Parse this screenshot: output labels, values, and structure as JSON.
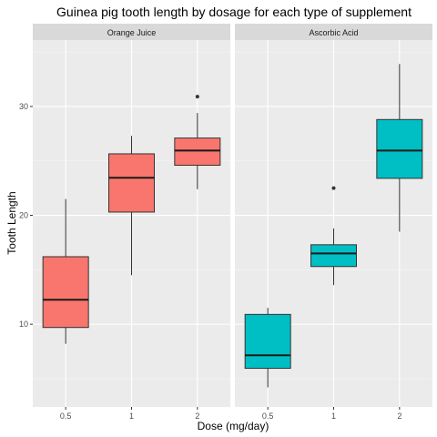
{
  "chart_data": {
    "type": "box",
    "title": "Guinea pig tooth length by dosage for each type of supplement",
    "xlabel": "Dose (mg/day)",
    "ylabel": "Tooth Length",
    "categories": [
      "0.5",
      "1",
      "2"
    ],
    "y_ticks": [
      "10",
      "20",
      "30"
    ],
    "ylim": [
      2.4,
      36.1
    ],
    "grid": true,
    "legend": "none",
    "panels": [
      {
        "name": "Orange Juice",
        "color": "#F8766D",
        "boxes": [
          {
            "category": "0.5",
            "min": 8.2,
            "q1": 9.7,
            "median": 12.25,
            "q3": 16.2,
            "max": 21.5,
            "outliers": []
          },
          {
            "category": "1",
            "min": 14.5,
            "q1": 20.3,
            "median": 23.45,
            "q3": 25.65,
            "max": 27.3,
            "outliers": []
          },
          {
            "category": "2",
            "min": 22.4,
            "q1": 24.6,
            "median": 25.95,
            "q3": 27.1,
            "max": 29.4,
            "outliers": [
              30.9
            ]
          }
        ]
      },
      {
        "name": "Ascorbic Acid",
        "color": "#00BFC4",
        "boxes": [
          {
            "category": "0.5",
            "min": 4.2,
            "q1": 5.95,
            "median": 7.15,
            "q3": 10.9,
            "max": 11.5,
            "outliers": []
          },
          {
            "category": "1",
            "min": 13.6,
            "q1": 15.3,
            "median": 16.5,
            "q3": 17.3,
            "max": 18.8,
            "outliers": [
              22.5
            ]
          },
          {
            "category": "2",
            "min": 18.5,
            "q1": 23.4,
            "median": 25.95,
            "q3": 28.8,
            "max": 33.9,
            "outliers": []
          }
        ]
      }
    ]
  }
}
